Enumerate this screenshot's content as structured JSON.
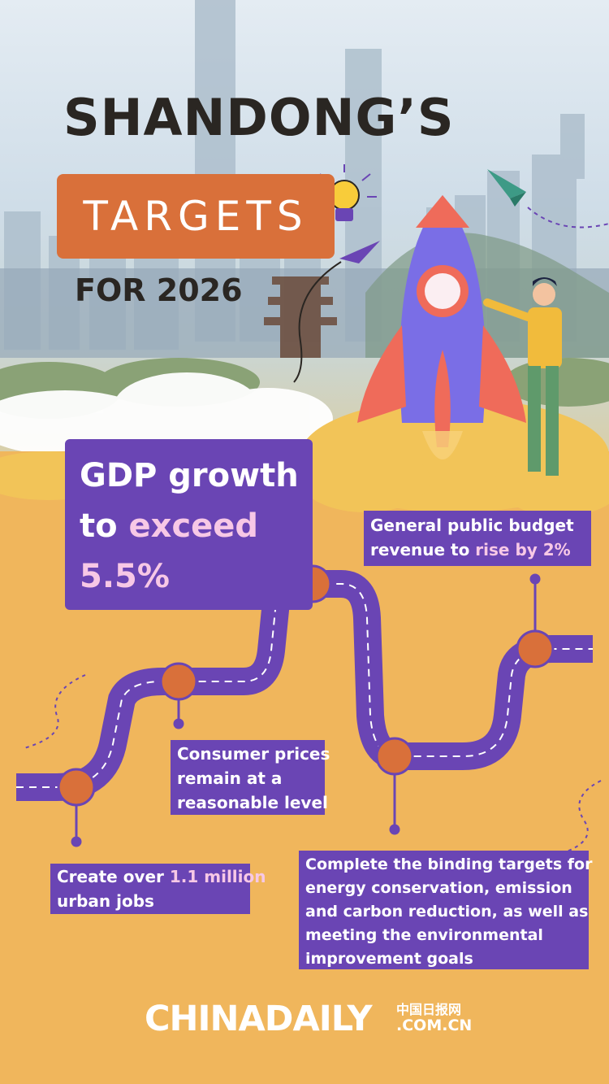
{
  "header": {
    "title_main": "SHANDONG’S",
    "title_badge": "TARGETS",
    "title_year": "FOR 2026"
  },
  "targets": {
    "gdp": {
      "line1": "GDP growth",
      "line2_pre": "to ",
      "line2_hl": "exceed",
      "line3": "5.5%"
    },
    "revenue": {
      "line1": "General public budget",
      "line2_pre": "revenue to ",
      "line2_hl": "rise by 2%"
    },
    "cpi": {
      "line1": "Consumer prices",
      "line2": "remain at a",
      "line3": "reasonable level"
    },
    "jobs": {
      "line1_pre": "Create over ",
      "line1_hl": "1.1 million",
      "line2": "urban jobs"
    },
    "environment": {
      "line1": "Complete the binding targets for",
      "line2": "energy conservation, emission",
      "line3": "and carbon reduction, as well as",
      "line4": "meeting the environmental",
      "line5": "improvement goals"
    }
  },
  "footer": {
    "logo": "CHINADAILY",
    "logo_cn": "中国日报网",
    "logo_url": ".COM.CN"
  },
  "colors": {
    "purple": "#6a45b4",
    "orange": "#d9703a",
    "background": "#f0b65c",
    "highlight": "#f7c8e6"
  },
  "icons": [
    "lightbulb-icon",
    "paper-plane-icon",
    "rocket-icon"
  ]
}
